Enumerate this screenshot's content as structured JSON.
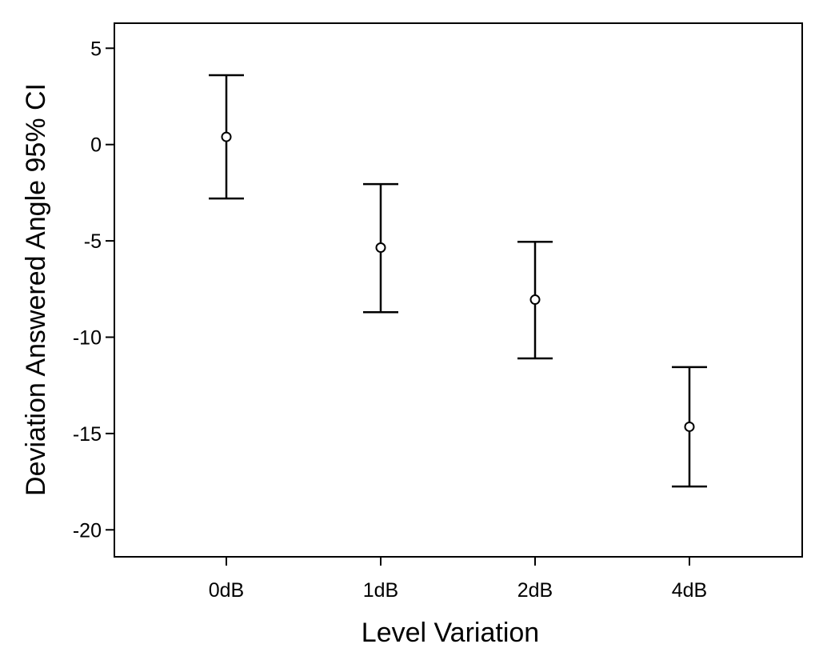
{
  "chart_data": {
    "type": "errorbar",
    "title": "",
    "xlabel": "Level Variation",
    "ylabel": "Deviation Answered Angle 95% CI",
    "categories": [
      "0dB",
      "1dB",
      "2dB",
      "4dB"
    ],
    "series": [
      {
        "mean": [
          0.4,
          -5.35,
          -8.05,
          -14.65
        ],
        "lower": [
          -2.8,
          -8.7,
          -11.1,
          -17.75
        ],
        "upper": [
          3.6,
          -2.05,
          -5.05,
          -11.55
        ]
      }
    ],
    "ylim": [
      -21.4,
      6.3
    ],
    "yticks": [
      5,
      0,
      -5,
      -10,
      -15,
      -20
    ],
    "ytick_labels": [
      "5",
      "0",
      "-5",
      "-10",
      "-15",
      "-20"
    ],
    "grid": false,
    "legend": "none"
  }
}
